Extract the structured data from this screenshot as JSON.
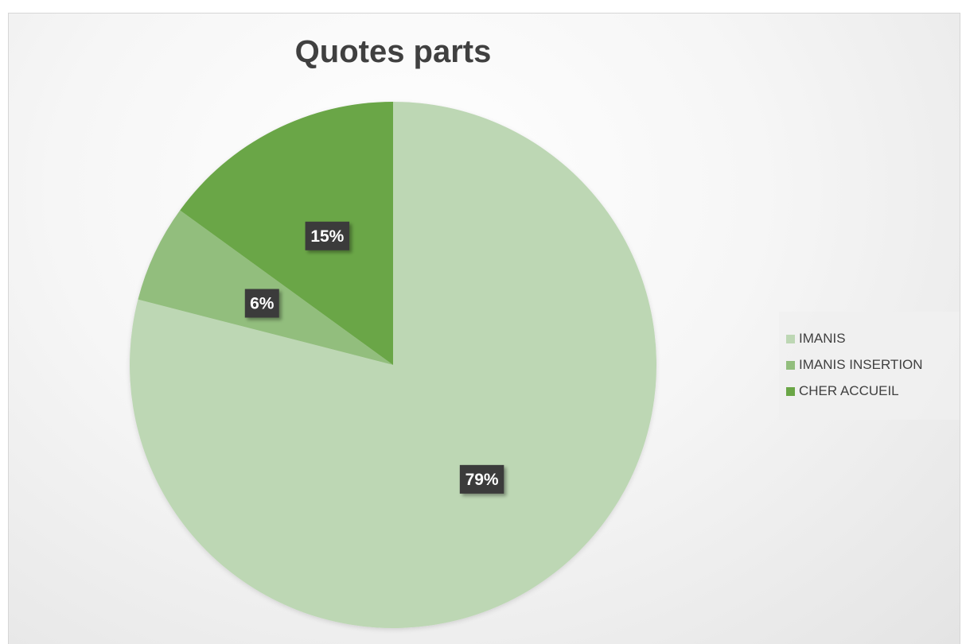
{
  "chart_data": {
    "type": "pie",
    "title": "Quotes parts",
    "categories": [
      "IMANIS",
      "IMANIS INSERTION",
      "CHER ACCUEIL"
    ],
    "values": [
      79,
      6,
      15
    ],
    "data_labels": [
      "79%",
      "6%",
      "15%"
    ],
    "colors": [
      "#bdd7b4",
      "#92be7d",
      "#6aa646"
    ],
    "legend_position": "right",
    "start_angle": "12 o'clock",
    "direction": "clockwise"
  }
}
